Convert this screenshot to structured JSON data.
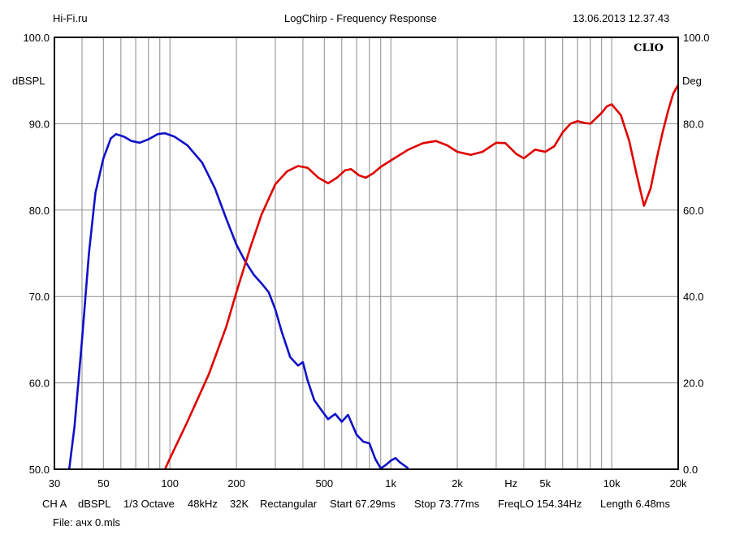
{
  "header": {
    "source": "Hi-Fi.ru",
    "title": "LogChirp - Frequency Response",
    "datetime": "13.06.2013 12.37.43"
  },
  "footer": {
    "line1": [
      "CH A",
      "dBSPL",
      "1/3 Octave",
      "48kHz",
      "32K",
      "Rectangular",
      "Start 67.29ms",
      "Stop 73.77ms",
      "FreqLO 154.34Hz",
      "Length 6.48ms"
    ],
    "file": "File: ачх 0.mls"
  },
  "chart_data": {
    "type": "line",
    "title": "LogChirp - Frequency Response",
    "brand": "CLIO",
    "x_scale": "log",
    "xlim": [
      30,
      20000
    ],
    "x_ticks": [
      {
        "value": 30,
        "label": "30"
      },
      {
        "value": 50,
        "label": "50"
      },
      {
        "value": 100,
        "label": "100"
      },
      {
        "value": 200,
        "label": "200"
      },
      {
        "value": 500,
        "label": "500"
      },
      {
        "value": 1000,
        "label": "1k"
      },
      {
        "value": 2000,
        "label": "2k"
      },
      {
        "value": 3500,
        "label": "Hz"
      },
      {
        "value": 5000,
        "label": "5k"
      },
      {
        "value": 10000,
        "label": "10k"
      },
      {
        "value": 20000,
        "label": "20k"
      }
    ],
    "ylabel_left": "dBSPL",
    "ylabel_right": "Deg",
    "ylim_left": [
      50,
      100
    ],
    "ylim_right": [
      0,
      100
    ],
    "y_ticks_left": [
      "50.0",
      "60.0",
      "70.0",
      "80.0",
      "90.0",
      "100.0"
    ],
    "y_ticks_right": [
      "0.0",
      "20.0",
      "40.0",
      "60.0",
      "80.0",
      "100.0"
    ],
    "grid": true,
    "series": [
      {
        "axis": "left",
        "color": "#1010c8",
        "points": [
          [
            35,
            50
          ],
          [
            37,
            55
          ],
          [
            40,
            65
          ],
          [
            43,
            75
          ],
          [
            46,
            82
          ],
          [
            50,
            86
          ],
          [
            54,
            88.3
          ],
          [
            57,
            88.8
          ],
          [
            62,
            88.5
          ],
          [
            67,
            88
          ],
          [
            73,
            87.8
          ],
          [
            80,
            88.2
          ],
          [
            88,
            88.8
          ],
          [
            95,
            88.9
          ],
          [
            105,
            88.5
          ],
          [
            120,
            87.5
          ],
          [
            140,
            85.5
          ],
          [
            160,
            82.5
          ],
          [
            180,
            79
          ],
          [
            200,
            76
          ],
          [
            220,
            74
          ],
          [
            240,
            72.5
          ],
          [
            260,
            71.5
          ],
          [
            280,
            70.5
          ],
          [
            300,
            68.5
          ],
          [
            320,
            66
          ],
          [
            350,
            63
          ],
          [
            380,
            62
          ],
          [
            400,
            62.4
          ],
          [
            420,
            60.3
          ],
          [
            450,
            58
          ],
          [
            480,
            57
          ],
          [
            520,
            55.8
          ],
          [
            560,
            56.4
          ],
          [
            600,
            55.5
          ],
          [
            640,
            56.3
          ],
          [
            700,
            54
          ],
          [
            750,
            53.2
          ],
          [
            800,
            53
          ],
          [
            850,
            51.2
          ],
          [
            900,
            50.1
          ],
          [
            950,
            50.5
          ],
          [
            1000,
            51
          ],
          [
            1050,
            51.3
          ],
          [
            1100,
            50.8
          ],
          [
            1200,
            50.1
          ]
        ]
      },
      {
        "axis": "right",
        "color": "#e00000",
        "points": [
          [
            95,
            0
          ],
          [
            100,
            2.5
          ],
          [
            120,
            11
          ],
          [
            150,
            22
          ],
          [
            180,
            33
          ],
          [
            200,
            41
          ],
          [
            230,
            51
          ],
          [
            260,
            59
          ],
          [
            300,
            66
          ],
          [
            340,
            69
          ],
          [
            380,
            70.2
          ],
          [
            420,
            69.8
          ],
          [
            470,
            67.5
          ],
          [
            520,
            66.2
          ],
          [
            570,
            67.5
          ],
          [
            620,
            69.2
          ],
          [
            660,
            69.5
          ],
          [
            720,
            68
          ],
          [
            770,
            67.5
          ],
          [
            830,
            68.5
          ],
          [
            900,
            70
          ],
          [
            1000,
            71.5
          ],
          [
            1200,
            74
          ],
          [
            1400,
            75.5
          ],
          [
            1600,
            76
          ],
          [
            1800,
            75
          ],
          [
            2000,
            73.5
          ],
          [
            2300,
            72.8
          ],
          [
            2600,
            73.5
          ],
          [
            3000,
            75.6
          ],
          [
            3300,
            75.5
          ],
          [
            3700,
            73
          ],
          [
            4000,
            72
          ],
          [
            4500,
            74
          ],
          [
            5000,
            73.5
          ],
          [
            5500,
            74.8
          ],
          [
            6000,
            78
          ],
          [
            6500,
            80
          ],
          [
            7000,
            80.6
          ],
          [
            7500,
            80.2
          ],
          [
            8000,
            80
          ],
          [
            9000,
            82.5
          ],
          [
            9500,
            84
          ],
          [
            10000,
            84.5
          ],
          [
            11000,
            82
          ],
          [
            12000,
            76
          ],
          [
            13000,
            68
          ],
          [
            14000,
            61
          ],
          [
            15000,
            65
          ],
          [
            16000,
            72
          ],
          [
            17000,
            78
          ],
          [
            18000,
            83
          ],
          [
            19000,
            87
          ],
          [
            20000,
            89
          ]
        ]
      }
    ]
  }
}
